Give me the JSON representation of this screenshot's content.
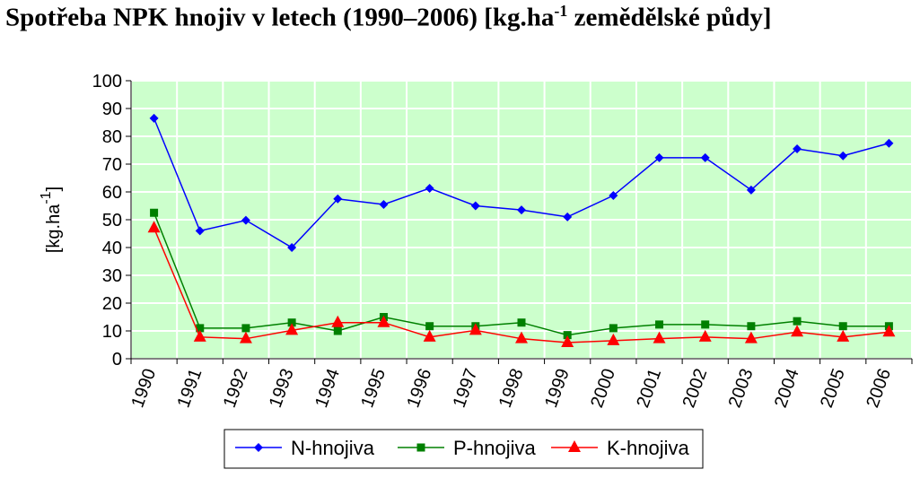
{
  "chart_data": {
    "type": "line",
    "title": "Spotřeba NPK hnojiv v letech (1990–2006) [kg.ha",
    "title_superscript": "-1",
    "title_suffix": " zemědělské půdy]",
    "ylabel": "[kg.ha",
    "ylabel_superscript": "-1",
    "ylabel_suffix": "]",
    "ylim": [
      0,
      100
    ],
    "yticks": [
      0,
      10,
      20,
      30,
      40,
      50,
      60,
      70,
      80,
      90,
      100
    ],
    "categories": [
      "1990",
      "1991",
      "1992",
      "1993",
      "1994",
      "1995",
      "1996",
      "1997",
      "1998",
      "1999",
      "2000",
      "2001",
      "2002",
      "2003",
      "2004",
      "2005",
      "2006"
    ],
    "grid": true,
    "plot_background": "#ccffcc",
    "legend_position": "bottom",
    "series": [
      {
        "name": "N-hnojiva",
        "color": "#0000ff",
        "marker": "diamond",
        "values": [
          86.5,
          46,
          49.8,
          40,
          57.5,
          55.5,
          61.3,
          55,
          53.5,
          51,
          58.7,
          72.3,
          72.3,
          60.7,
          75.5,
          73,
          77.5
        ]
      },
      {
        "name": "P-hnojiva",
        "color": "#008000",
        "marker": "square",
        "values": [
          52.5,
          11,
          11,
          13,
          10,
          15,
          11.7,
          11.7,
          13,
          8.5,
          11,
          12.3,
          12.3,
          11.7,
          13.5,
          11.7,
          11.7
        ]
      },
      {
        "name": "K-hnojiva",
        "color": "#ff0000",
        "marker": "triangle",
        "values": [
          47,
          7.8,
          7.2,
          10.2,
          13,
          13,
          7.8,
          10.2,
          7.2,
          5.8,
          6.5,
          7.2,
          7.8,
          7.2,
          9.6,
          7.8,
          9.6
        ]
      }
    ]
  }
}
